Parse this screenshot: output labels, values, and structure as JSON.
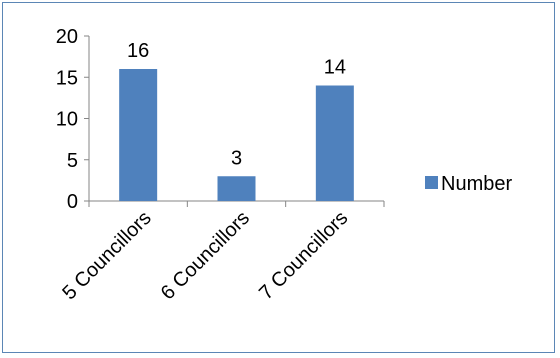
{
  "chart_data": {
    "type": "bar",
    "categories": [
      "5 Councillors",
      "6 Councillors",
      "7 Councillors"
    ],
    "series": [
      {
        "name": "Number",
        "values": [
          16,
          3,
          14
        ],
        "color": "#4f81bd"
      }
    ],
    "ylim": [
      0,
      20
    ],
    "yticks": [
      0,
      5,
      10,
      15,
      20
    ],
    "grid": false,
    "legend_position": "right",
    "data_labels": true
  }
}
